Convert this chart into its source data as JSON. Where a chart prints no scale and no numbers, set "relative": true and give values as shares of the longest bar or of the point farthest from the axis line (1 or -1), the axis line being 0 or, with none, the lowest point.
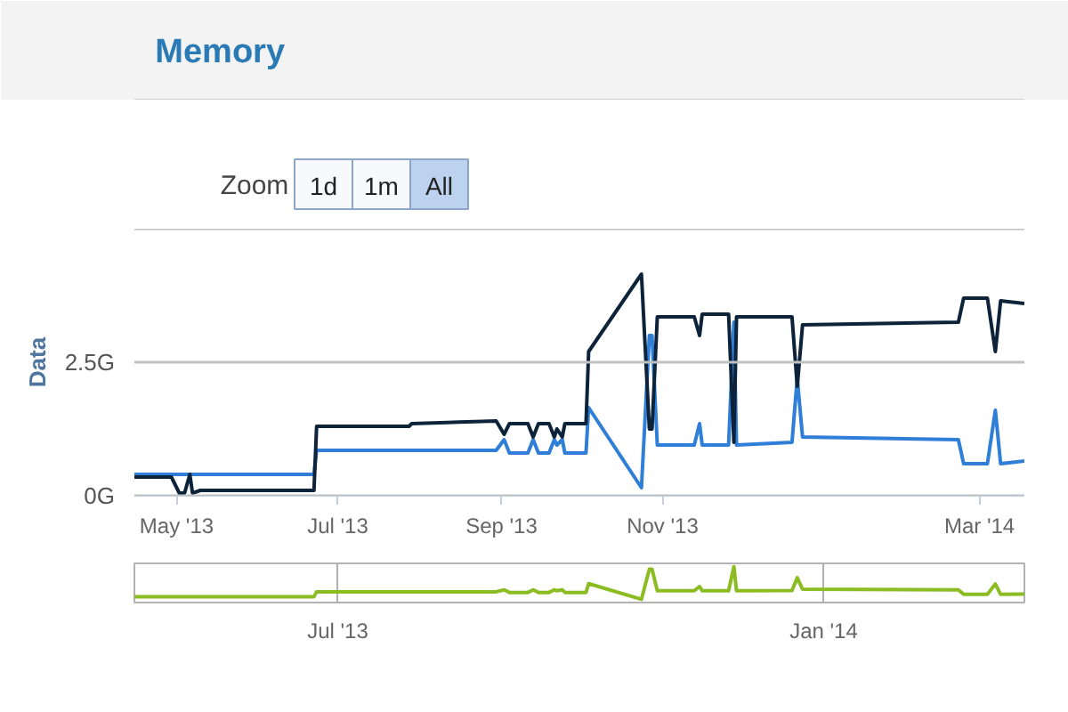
{
  "chart_data": [
    {
      "type": "line",
      "title": "Memory",
      "ylabel": "Data",
      "annotations": [
        "Zoom",
        "1d",
        "1m",
        "All"
      ],
      "x": [
        "2013-04-15",
        "2013-04-29",
        "2013-05-02",
        "2013-05-04",
        "2013-05-06",
        "2013-05-07",
        "2013-05-10",
        "2013-06-22",
        "2013-06-23",
        "2013-07-28",
        "2013-07-29",
        "2013-08-30",
        "2013-09-02",
        "2013-09-04",
        "2013-09-11",
        "2013-09-13",
        "2013-09-15",
        "2013-09-19",
        "2013-09-21",
        "2013-09-22",
        "2013-09-24",
        "2013-09-25",
        "2013-10-03",
        "2013-10-04",
        "2013-10-24",
        "2013-10-27",
        "2013-10-28",
        "2013-10-30",
        "2013-11-13",
        "2013-11-15",
        "2013-11-16",
        "2013-11-26",
        "2013-11-28",
        "2013-11-29",
        "2013-12-20",
        "2013-12-22",
        "2013-12-24",
        "2014-02-21",
        "2014-02-23",
        "2014-03-04",
        "2014-03-07",
        "2014-03-09",
        "2014-03-18"
      ],
      "series": [
        {
          "color": "#2f7ed8",
          "values": [
            0.4,
            0.4,
            0.4,
            0.4,
            0.4,
            0.4,
            0.4,
            0.4,
            0.85,
            0.85,
            0.85,
            0.85,
            1.05,
            0.8,
            0.8,
            1.05,
            0.8,
            0.8,
            1.05,
            0.95,
            1.05,
            0.8,
            0.8,
            1.65,
            0.15,
            3.0,
            3.0,
            0.95,
            0.95,
            1.35,
            0.95,
            0.95,
            3.25,
            0.95,
            1.0,
            2.2,
            1.1,
            1.05,
            0.6,
            0.6,
            1.6,
            0.6,
            0.65
          ]
        },
        {
          "color": "#0d233a",
          "values": [
            0.35,
            0.35,
            0.05,
            0.05,
            0.4,
            0.05,
            0.1,
            0.1,
            1.3,
            1.3,
            1.35,
            1.4,
            1.15,
            1.35,
            1.35,
            1.1,
            1.35,
            1.35,
            1.1,
            1.25,
            1.1,
            1.35,
            1.35,
            2.7,
            4.15,
            1.25,
            1.25,
            3.35,
            3.35,
            3.0,
            3.4,
            3.4,
            1.0,
            3.35,
            3.35,
            2.05,
            3.2,
            3.25,
            3.7,
            3.7,
            2.7,
            3.65,
            3.6
          ]
        }
      ],
      "xlim": [
        "2013-04-15",
        "2014-03-18"
      ],
      "xticks": [
        {
          "value": "2013-05-01",
          "label": "May '13"
        },
        {
          "value": "2013-07-01",
          "label": "Jul '13"
        },
        {
          "value": "2013-09-01",
          "label": "Sep '13"
        },
        {
          "value": "2013-11-01",
          "label": "Nov '13"
        },
        {
          "value": "2014-03-01",
          "label": "Mar '14"
        }
      ],
      "ylim": [
        0,
        5
      ],
      "yticks": [
        {
          "value": 0,
          "label": "0G"
        },
        {
          "value": 2.5,
          "label": "2.5G"
        },
        {
          "value": 5,
          "label": null
        }
      ],
      "grid": "y",
      "marker": "none",
      "line_style": "solid"
    },
    {
      "type": "line",
      "relative": true,
      "color": "#8bbc21",
      "x": [
        "2013-04-15",
        "2013-04-29",
        "2013-05-02",
        "2013-05-04",
        "2013-05-06",
        "2013-05-07",
        "2013-05-10",
        "2013-06-22",
        "2013-06-23",
        "2013-07-28",
        "2013-07-29",
        "2013-08-30",
        "2013-09-02",
        "2013-09-04",
        "2013-09-11",
        "2013-09-13",
        "2013-09-15",
        "2013-09-19",
        "2013-09-21",
        "2013-09-22",
        "2013-09-24",
        "2013-09-25",
        "2013-10-03",
        "2013-10-04",
        "2013-10-24",
        "2013-10-27",
        "2013-10-28",
        "2013-10-30",
        "2013-11-13",
        "2013-11-15",
        "2013-11-16",
        "2013-11-26",
        "2013-11-28",
        "2013-11-29",
        "2013-12-20",
        "2013-12-22",
        "2013-12-24",
        "2014-02-21",
        "2014-02-23",
        "2014-03-04",
        "2014-03-07",
        "2014-03-09",
        "2014-03-18"
      ],
      "values": [
        0.08,
        0.08,
        0.08,
        0.08,
        0.08,
        0.08,
        0.08,
        0.08,
        0.23,
        0.23,
        0.23,
        0.23,
        0.29,
        0.21,
        0.21,
        0.29,
        0.21,
        0.21,
        0.29,
        0.26,
        0.29,
        0.21,
        0.21,
        0.48,
        0,
        0.92,
        0.92,
        0.26,
        0.26,
        0.39,
        0.26,
        0.26,
        1,
        0.26,
        0.27,
        0.66,
        0.31,
        0.29,
        0.15,
        0.15,
        0.47,
        0.15,
        0.16
      ],
      "xlim": [
        "2013-04-15",
        "2014-03-18"
      ],
      "xticks": [
        {
          "value": "2013-07-01",
          "label": "Jul '13"
        },
        {
          "value": "2014-01-01",
          "label": "Jan '14"
        }
      ],
      "grid": "x",
      "tick_labels": "x",
      "marker": "none",
      "line_style": "solid"
    }
  ]
}
